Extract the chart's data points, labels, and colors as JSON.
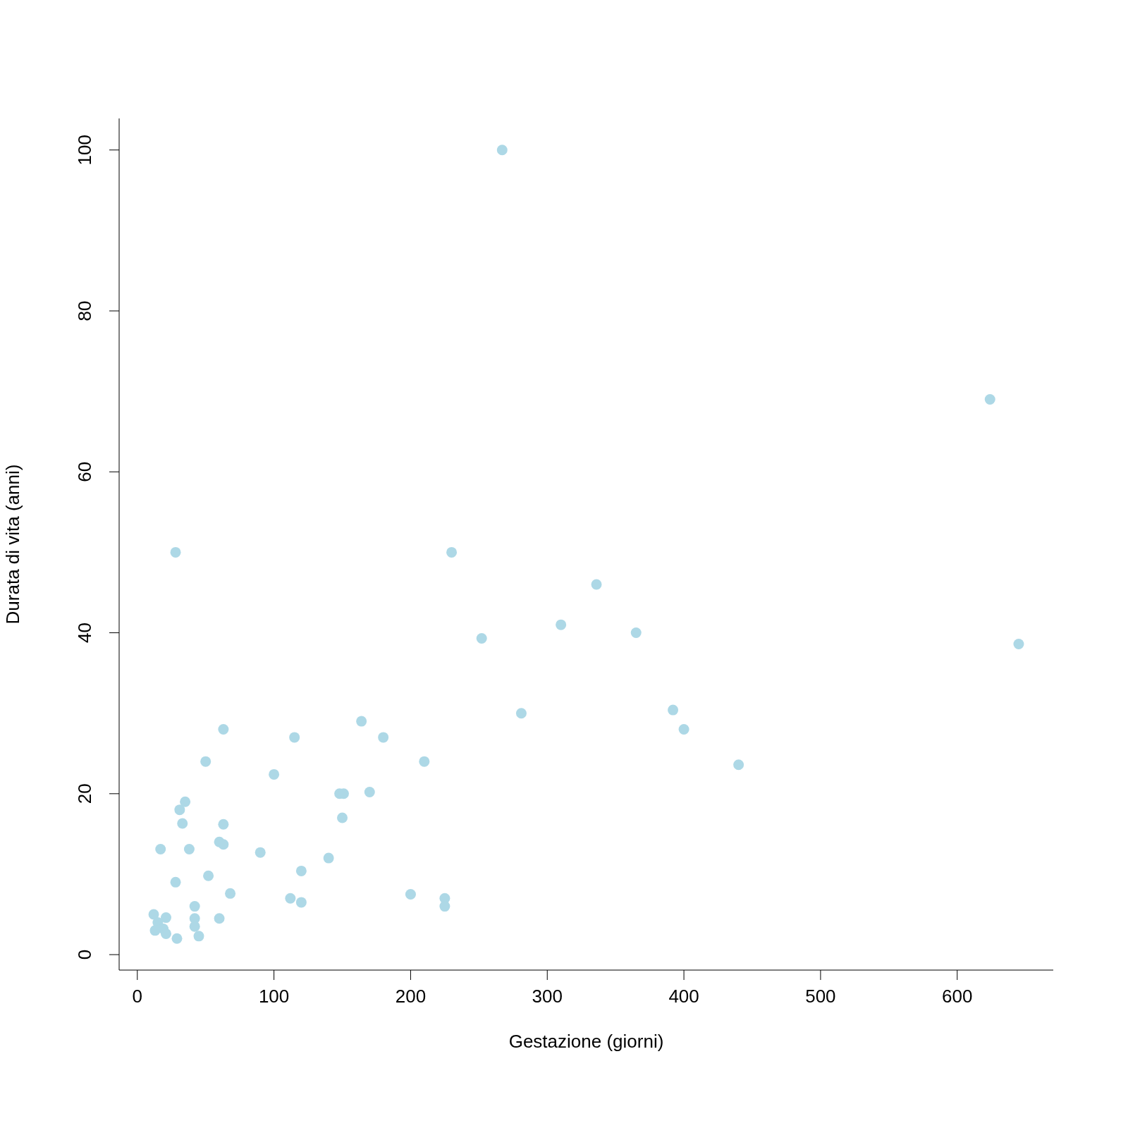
{
  "chart_data": {
    "type": "scatter",
    "xlabel": "Gestazione (giorni)",
    "ylabel": "Durata di vita (anni)",
    "x": [
      267,
      624,
      645,
      28,
      230,
      336,
      310,
      365,
      252,
      392,
      281,
      400,
      63,
      164,
      115,
      180,
      50,
      210,
      440,
      100,
      148,
      151,
      170,
      150,
      35,
      31,
      33,
      63,
      60,
      63,
      17,
      38,
      90,
      140,
      120,
      52,
      28,
      68,
      200,
      112,
      225,
      120,
      225,
      42,
      12,
      21,
      42,
      60,
      15,
      42,
      19,
      13,
      21,
      45,
      29
    ],
    "values": [
      100,
      69,
      38.6,
      50,
      50,
      46,
      41,
      40,
      39.3,
      30.4,
      30,
      28,
      28,
      29,
      27,
      27,
      24,
      24,
      23.6,
      22.4,
      20,
      20,
      20.2,
      17,
      19,
      18,
      16.3,
      16.2,
      14,
      13.7,
      13.1,
      13.1,
      12.7,
      12,
      10.4,
      9.8,
      9,
      7.6,
      7.5,
      7,
      7,
      6.5,
      6,
      6,
      5,
      4.6,
      4.5,
      4.5,
      4,
      3.5,
      3.2,
      3,
      2.6,
      2.3,
      2
    ],
    "color": "#add8e6",
    "marker": "circle",
    "xlim": [
      -13.3,
      670.3
    ],
    "ylim": [
      -1.92,
      103.92
    ],
    "xticks": [
      0,
      100,
      200,
      300,
      400,
      500,
      600
    ],
    "yticks": [
      0,
      20,
      40,
      60,
      80,
      100
    ]
  }
}
